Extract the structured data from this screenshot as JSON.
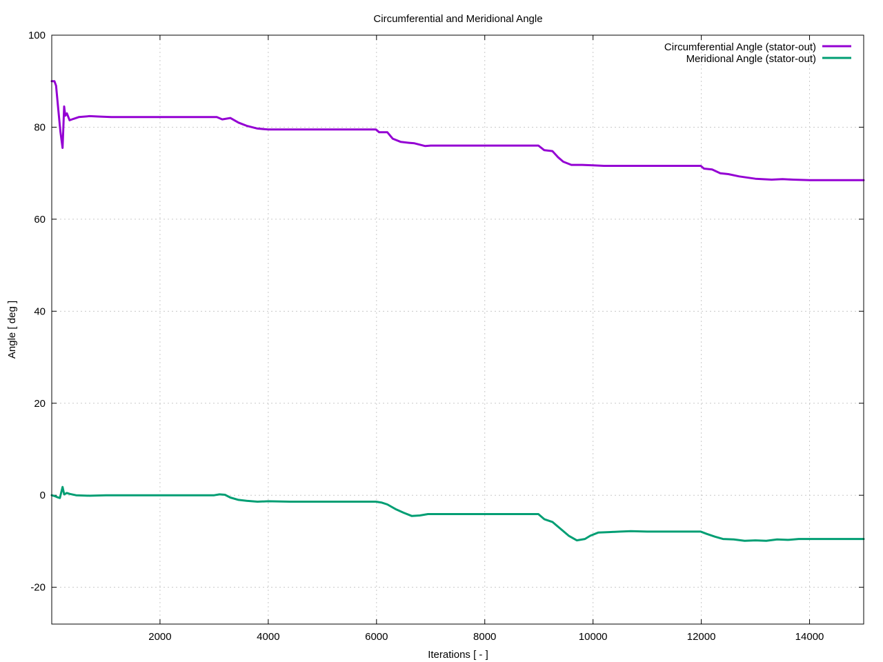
{
  "chart_data": {
    "type": "line",
    "title": "Circumferential and Meridional Angle",
    "xlabel": "Iterations [ - ]",
    "ylabel": "Angle [ deg ]",
    "xlim": [
      0,
      15000
    ],
    "ylim": [
      -28,
      100
    ],
    "xticks": [
      2000,
      4000,
      6000,
      8000,
      10000,
      12000,
      14000
    ],
    "yticks": [
      -20,
      0,
      20,
      40,
      60,
      80,
      100
    ],
    "grid": true,
    "legend_position": "top-right",
    "series": [
      {
        "name": "Circumferential Angle (stator-out)",
        "color": "#9400d3",
        "points": [
          [
            0,
            90
          ],
          [
            50,
            90
          ],
          [
            80,
            89
          ],
          [
            120,
            84
          ],
          [
            160,
            79
          ],
          [
            200,
            75.5
          ],
          [
            230,
            84.5
          ],
          [
            250,
            82.5
          ],
          [
            280,
            83
          ],
          [
            330,
            81.5
          ],
          [
            400,
            81.8
          ],
          [
            500,
            82.2
          ],
          [
            700,
            82.4
          ],
          [
            900,
            82.3
          ],
          [
            1100,
            82.2
          ],
          [
            2000,
            82.2
          ],
          [
            2900,
            82.2
          ],
          [
            3050,
            82.2
          ],
          [
            3150,
            81.7
          ],
          [
            3300,
            82
          ],
          [
            3450,
            81
          ],
          [
            3600,
            80.3
          ],
          [
            3800,
            79.7
          ],
          [
            4000,
            79.5
          ],
          [
            4400,
            79.5
          ],
          [
            5000,
            79.5
          ],
          [
            5990,
            79.5
          ],
          [
            6050,
            78.9
          ],
          [
            6200,
            78.9
          ],
          [
            6300,
            77.5
          ],
          [
            6450,
            76.8
          ],
          [
            6600,
            76.6
          ],
          [
            6700,
            76.5
          ],
          [
            6800,
            76.2
          ],
          [
            6900,
            75.9
          ],
          [
            7000,
            76
          ],
          [
            7500,
            76
          ],
          [
            8000,
            76
          ],
          [
            8990,
            76
          ],
          [
            9100,
            75
          ],
          [
            9250,
            74.8
          ],
          [
            9350,
            73.5
          ],
          [
            9450,
            72.5
          ],
          [
            9600,
            71.8
          ],
          [
            9800,
            71.8
          ],
          [
            10000,
            71.7
          ],
          [
            10200,
            71.6
          ],
          [
            10500,
            71.6
          ],
          [
            11000,
            71.6
          ],
          [
            11990,
            71.6
          ],
          [
            12050,
            71
          ],
          [
            12200,
            70.8
          ],
          [
            12350,
            70
          ],
          [
            12500,
            69.8
          ],
          [
            12700,
            69.3
          ],
          [
            13000,
            68.8
          ],
          [
            13300,
            68.6
          ],
          [
            13500,
            68.7
          ],
          [
            13700,
            68.6
          ],
          [
            14000,
            68.5
          ],
          [
            15000,
            68.5
          ]
        ]
      },
      {
        "name": "Meridional Angle (stator-out)",
        "color": "#009e73",
        "points": [
          [
            0,
            0
          ],
          [
            60,
            -0.2
          ],
          [
            100,
            -0.4
          ],
          [
            150,
            -0.6
          ],
          [
            200,
            1.8
          ],
          [
            230,
            0.2
          ],
          [
            280,
            0.5
          ],
          [
            330,
            0.3
          ],
          [
            450,
            0
          ],
          [
            700,
            -0.1
          ],
          [
            1000,
            0
          ],
          [
            2000,
            0
          ],
          [
            3000,
            0
          ],
          [
            3100,
            0.2
          ],
          [
            3200,
            0.1
          ],
          [
            3300,
            -0.5
          ],
          [
            3450,
            -1
          ],
          [
            3600,
            -1.2
          ],
          [
            3800,
            -1.4
          ],
          [
            4000,
            -1.3
          ],
          [
            4400,
            -1.4
          ],
          [
            5000,
            -1.4
          ],
          [
            5990,
            -1.4
          ],
          [
            6100,
            -1.6
          ],
          [
            6200,
            -2
          ],
          [
            6350,
            -3
          ],
          [
            6500,
            -3.8
          ],
          [
            6650,
            -4.5
          ],
          [
            6800,
            -4.4
          ],
          [
            6950,
            -4.1
          ],
          [
            7000,
            -4.1
          ],
          [
            8000,
            -4.1
          ],
          [
            8990,
            -4.1
          ],
          [
            9100,
            -5.2
          ],
          [
            9250,
            -5.8
          ],
          [
            9400,
            -7.3
          ],
          [
            9550,
            -8.8
          ],
          [
            9700,
            -9.8
          ],
          [
            9850,
            -9.5
          ],
          [
            9950,
            -8.8
          ],
          [
            10100,
            -8.1
          ],
          [
            10300,
            -8
          ],
          [
            10500,
            -7.9
          ],
          [
            10700,
            -7.8
          ],
          [
            11000,
            -7.9
          ],
          [
            11990,
            -7.9
          ],
          [
            12100,
            -8.4
          ],
          [
            12250,
            -9
          ],
          [
            12400,
            -9.5
          ],
          [
            12600,
            -9.6
          ],
          [
            12800,
            -9.9
          ],
          [
            13000,
            -9.8
          ],
          [
            13200,
            -9.9
          ],
          [
            13400,
            -9.6
          ],
          [
            13600,
            -9.7
          ],
          [
            13800,
            -9.5
          ],
          [
            14000,
            -9.5
          ],
          [
            15000,
            -9.5
          ]
        ]
      }
    ]
  }
}
